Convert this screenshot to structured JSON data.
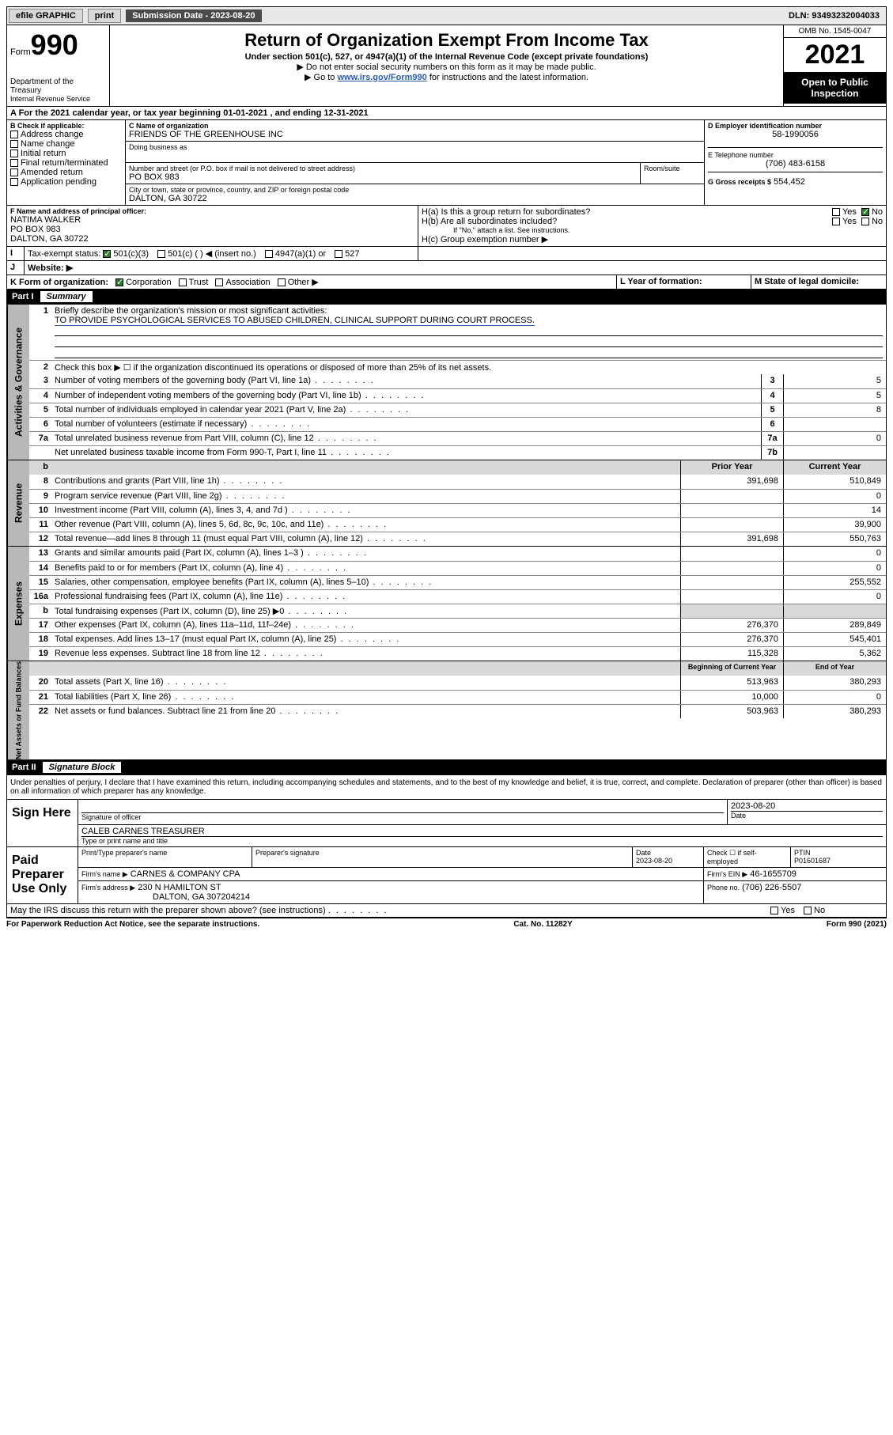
{
  "topbar": {
    "efile": "efile GRAPHIC",
    "print": "print",
    "submission_label": "Submission Date - 2023-08-20",
    "dln": "DLN: 93493232004033"
  },
  "header": {
    "form_prefix": "Form",
    "form_number": "990",
    "title": "Return of Organization Exempt From Income Tax",
    "subtitle1": "Under section 501(c), 527, or 4947(a)(1) of the Internal Revenue Code (except private foundations)",
    "subtitle2": "▶ Do not enter social security numbers on this form as it may be made public.",
    "subtitle3_prefix": "▶ Go to ",
    "subtitle3_link": "www.irs.gov/Form990",
    "subtitle3_suffix": " for instructions and the latest information.",
    "dept": "Department of the Treasury",
    "irs": "Internal Revenue Service",
    "omb": "OMB No. 1545-0047",
    "year": "2021",
    "inspect1": "Open to Public",
    "inspect2": "Inspection"
  },
  "lineA": {
    "text_prefix": "A For the 2021 calendar year, or tax year beginning ",
    "begin": "01-01-2021",
    "mid": " , and ending ",
    "end": "12-31-2021"
  },
  "boxB": {
    "label": "B Check if applicable:",
    "opts": [
      "Address change",
      "Name change",
      "Initial return",
      "Final return/terminated",
      "Amended return",
      "Application pending"
    ]
  },
  "boxC": {
    "label": "C Name of organization",
    "name": "FRIENDS OF THE GREENHOUSE INC",
    "dba_label": "Doing business as",
    "addr_label": "Number and street (or P.O. box if mail is not delivered to street address)",
    "room_label": "Room/suite",
    "addr": "PO BOX 983",
    "city_label": "City or town, state or province, country, and ZIP or foreign postal code",
    "city": "DALTON, GA  30722"
  },
  "boxD": {
    "label": "D Employer identification number",
    "value": "58-1990056"
  },
  "boxE": {
    "label": "E Telephone number",
    "value": "(706) 483-6158"
  },
  "boxG": {
    "label": "G Gross receipts $",
    "value": "554,452"
  },
  "boxF": {
    "label": "F Name and address of principal officer:",
    "name": "NATIMA WALKER",
    "addr1": "PO BOX 983",
    "addr2": "DALTON, GA  30722"
  },
  "boxH": {
    "ha": "H(a)  Is this a group return for subordinates?",
    "hb": "H(b)  Are all subordinates included?",
    "hb_note": "If \"No,\" attach a list. See instructions.",
    "hc": "H(c)  Group exemption number ▶",
    "yes": "Yes",
    "no": "No"
  },
  "boxI": {
    "label": "Tax-exempt status:",
    "opts": [
      "501(c)(3)",
      "501(c) (  ) ◀ (insert no.)",
      "4947(a)(1) or",
      "527"
    ]
  },
  "boxJ": {
    "label": "Website: ▶"
  },
  "boxK": {
    "label": "K Form of organization:",
    "opts": [
      "Corporation",
      "Trust",
      "Association",
      "Other ▶"
    ]
  },
  "boxL": {
    "label": "L Year of formation:"
  },
  "boxM": {
    "label": "M State of legal domicile:"
  },
  "part1": {
    "num": "Part I",
    "title": "Summary"
  },
  "gov": {
    "label": "Activities & Governance",
    "l1": "Briefly describe the organization's mission or most significant activities:",
    "l1val": "TO PROVIDE PSYCHOLOGICAL SERVICES TO ABUSED CHILDREN, CLINICAL SUPPORT DURING COURT PROCESS.",
    "l2": "Check this box ▶ ☐  if the organization discontinued its operations or disposed of more than 25% of its net assets.",
    "rows": [
      {
        "n": "3",
        "d": "Number of voting members of the governing body (Part VI, line 1a)",
        "b": "3",
        "v": "5"
      },
      {
        "n": "4",
        "d": "Number of independent voting members of the governing body (Part VI, line 1b)",
        "b": "4",
        "v": "5"
      },
      {
        "n": "5",
        "d": "Total number of individuals employed in calendar year 2021 (Part V, line 2a)",
        "b": "5",
        "v": "8"
      },
      {
        "n": "6",
        "d": "Total number of volunteers (estimate if necessary)",
        "b": "6",
        "v": ""
      },
      {
        "n": "7a",
        "d": "Total unrelated business revenue from Part VIII, column (C), line 12",
        "b": "7a",
        "v": "0"
      },
      {
        "n": "",
        "d": "Net unrelated business taxable income from Form 990-T, Part I, line 11",
        "b": "7b",
        "v": ""
      }
    ]
  },
  "rev": {
    "label": "Revenue",
    "hdr_prior": "Prior Year",
    "hdr_curr": "Current Year",
    "rows": [
      {
        "n": "8",
        "d": "Contributions and grants (Part VIII, line 1h)",
        "p": "391,698",
        "c": "510,849"
      },
      {
        "n": "9",
        "d": "Program service revenue (Part VIII, line 2g)",
        "p": "",
        "c": "0"
      },
      {
        "n": "10",
        "d": "Investment income (Part VIII, column (A), lines 3, 4, and 7d )",
        "p": "",
        "c": "14"
      },
      {
        "n": "11",
        "d": "Other revenue (Part VIII, column (A), lines 5, 6d, 8c, 9c, 10c, and 11e)",
        "p": "",
        "c": "39,900"
      },
      {
        "n": "12",
        "d": "Total revenue—add lines 8 through 11 (must equal Part VIII, column (A), line 12)",
        "p": "391,698",
        "c": "550,763"
      }
    ]
  },
  "exp": {
    "label": "Expenses",
    "rows": [
      {
        "n": "13",
        "d": "Grants and similar amounts paid (Part IX, column (A), lines 1–3 )",
        "p": "",
        "c": "0"
      },
      {
        "n": "14",
        "d": "Benefits paid to or for members (Part IX, column (A), line 4)",
        "p": "",
        "c": "0"
      },
      {
        "n": "15",
        "d": "Salaries, other compensation, employee benefits (Part IX, column (A), lines 5–10)",
        "p": "",
        "c": "255,552"
      },
      {
        "n": "16a",
        "d": "Professional fundraising fees (Part IX, column (A), line 11e)",
        "p": "",
        "c": "0"
      },
      {
        "n": "b",
        "d": "Total fundraising expenses (Part IX, column (D), line 25) ▶0",
        "p": "grey",
        "c": "grey"
      },
      {
        "n": "17",
        "d": "Other expenses (Part IX, column (A), lines 11a–11d, 11f–24e)",
        "p": "276,370",
        "c": "289,849"
      },
      {
        "n": "18",
        "d": "Total expenses. Add lines 13–17 (must equal Part IX, column (A), line 25)",
        "p": "276,370",
        "c": "545,401"
      },
      {
        "n": "19",
        "d": "Revenue less expenses. Subtract line 18 from line 12",
        "p": "115,328",
        "c": "5,362"
      }
    ]
  },
  "net": {
    "label": "Net Assets or Fund Balances",
    "hdr_beg": "Beginning of Current Year",
    "hdr_end": "End of Year",
    "rows": [
      {
        "n": "20",
        "d": "Total assets (Part X, line 16)",
        "p": "513,963",
        "c": "380,293"
      },
      {
        "n": "21",
        "d": "Total liabilities (Part X, line 26)",
        "p": "10,000",
        "c": "0"
      },
      {
        "n": "22",
        "d": "Net assets or fund balances. Subtract line 21 from line 20",
        "p": "503,963",
        "c": "380,293"
      }
    ]
  },
  "part2": {
    "num": "Part II",
    "title": "Signature Block"
  },
  "sig": {
    "decl": "Under penalties of perjury, I declare that I have examined this return, including accompanying schedules and statements, and to the best of my knowledge and belief, it is true, correct, and complete. Declaration of preparer (other than officer) is based on all information of which preparer has any knowledge.",
    "sign_here": "Sign Here",
    "sig_officer": "Signature of officer",
    "date": "Date",
    "date_val": "2023-08-20",
    "name_title": "CALEB CARNES TREASURER",
    "name_title_label": "Type or print name and title",
    "paid_prep": "Paid Preparer Use Only",
    "prep_name_label": "Print/Type preparer's name",
    "prep_sig_label": "Preparer's signature",
    "prep_date_label": "Date",
    "prep_date": "2023-08-20",
    "check_self": "Check ☐ if self-employed",
    "ptin_label": "PTIN",
    "ptin": "P01601687",
    "firm_name_label": "Firm's name   ▶",
    "firm_name": "CARNES & COMPANY CPA",
    "firm_ein_label": "Firm's EIN ▶",
    "firm_ein": "46-1655709",
    "firm_addr_label": "Firm's address ▶",
    "firm_addr1": "230 N HAMILTON ST",
    "firm_addr2": "DALTON, GA  307204214",
    "firm_phone_label": "Phone no.",
    "firm_phone": "(706) 226-5507",
    "discuss": "May the IRS discuss this return with the preparer shown above? (see instructions)"
  },
  "footer": {
    "left": "For Paperwork Reduction Act Notice, see the separate instructions.",
    "mid": "Cat. No. 11282Y",
    "right": "Form 990 (2021)"
  }
}
